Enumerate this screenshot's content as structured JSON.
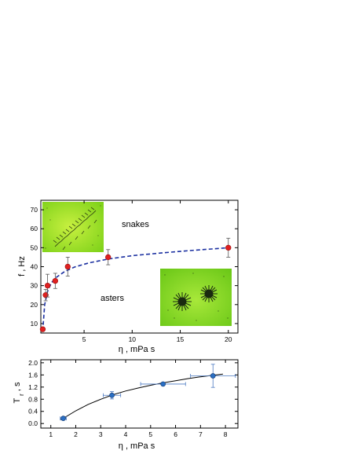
{
  "chart_data": [
    {
      "type": "scatter",
      "xlabel": "η , mPa s",
      "ylabel": "f , Hz",
      "xlim": [
        0.5,
        21
      ],
      "ylim": [
        5,
        75
      ],
      "xticks": [
        5,
        10,
        15,
        20
      ],
      "yticks": [
        10,
        20,
        30,
        40,
        50,
        60,
        70
      ],
      "annotations": [
        "snakes",
        "asters"
      ],
      "series": [
        {
          "marker": "filled-circle",
          "color": "#e02020",
          "x": [
            0.7,
            1.0,
            1.2,
            2.0,
            3.3,
            7.5,
            20.0
          ],
          "y": [
            7,
            25,
            30,
            32.5,
            40,
            45,
            50
          ],
          "yerr": [
            1,
            3,
            6,
            4,
            5,
            4,
            5
          ]
        }
      ],
      "fit_curve": {
        "style": "dashed",
        "color": "#1a2fa0",
        "x": [
          0.7,
          0.9,
          1.2,
          1.6,
          2.0,
          3.0,
          4.0,
          5.5,
          7.5,
          10,
          13,
          16,
          20
        ],
        "y": [
          6,
          20,
          27,
          31.5,
          34,
          37.5,
          39.8,
          42,
          44,
          45.8,
          47.2,
          48.5,
          50
        ]
      },
      "insets": [
        "snakes-photo",
        "asters-photo"
      ]
    },
    {
      "type": "scatter",
      "xlabel": "η , mPa s",
      "ylabel": "T_r , s",
      "xlim": [
        0.6,
        8.5
      ],
      "ylim": [
        -0.15,
        2.1
      ],
      "xticks": [
        1,
        2,
        3,
        4,
        5,
        6,
        7,
        8
      ],
      "yticks": [
        0.0,
        0.4,
        0.8,
        1.2,
        1.6,
        2.0
      ],
      "yticklabels": [
        "0.0",
        "0.4",
        "0.8",
        "1.2",
        "1.6",
        "2.0"
      ],
      "series": [
        {
          "marker": "filled-circle",
          "color": "#2a6fc4",
          "x": [
            1.5,
            3.45,
            5.5,
            7.5
          ],
          "y": [
            0.17,
            0.93,
            1.3,
            1.57
          ],
          "yerr": [
            0.05,
            0.12,
            0.05,
            0.38
          ],
          "xerr": [
            0.12,
            0.35,
            0.9,
            0.9
          ]
        }
      ],
      "fit_curve": {
        "style": "solid",
        "color": "#000000",
        "x": [
          1.4,
          2.0,
          2.5,
          3.0,
          3.5,
          4.0,
          4.5,
          5.0,
          5.5,
          6.0,
          6.5,
          7.0,
          7.5,
          7.9
        ],
        "y": [
          0.12,
          0.42,
          0.63,
          0.8,
          0.95,
          1.07,
          1.17,
          1.26,
          1.34,
          1.41,
          1.48,
          1.54,
          1.59,
          1.63
        ]
      }
    }
  ]
}
